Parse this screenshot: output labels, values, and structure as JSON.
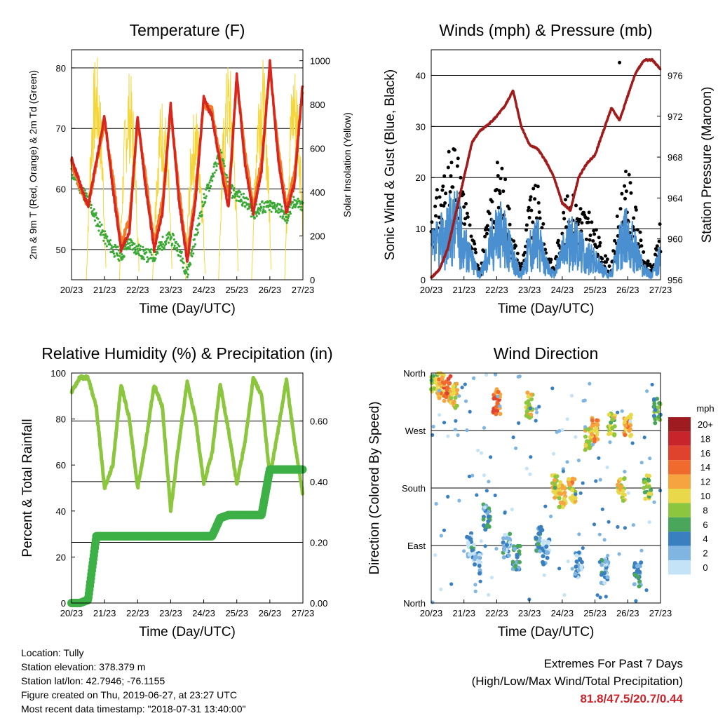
{
  "colors": {
    "red": "#d7261e",
    "orange": "#f07d28",
    "green": "#3aa935",
    "yellow": "#f5d63a",
    "black": "#000000",
    "blue": "#4a8fd0",
    "maroon": "#a01c1c",
    "rh": "#8cc63f",
    "precip": "#3db046"
  },
  "x_ticks": [
    "20/23",
    "21/23",
    "22/23",
    "23/23",
    "24/23",
    "25/23",
    "26/23",
    "27/23"
  ],
  "x_label": "Time (Day/UTC)",
  "panels": {
    "temperature": {
      "title": "Temperature (F)",
      "ylabel_left": "2m & 9m T (Red, Orange) & 2m Td (Green)",
      "ylabel_right": "Solar Insolation (Yellow)",
      "yticks_left": [
        "50",
        "60",
        "70",
        "80"
      ],
      "yticks_right": [
        "0",
        "200",
        "400",
        "600",
        "800",
        "1000"
      ]
    },
    "winds": {
      "title": "Winds (mph) & Pressure (mb)",
      "ylabel_left": "Sonic Wind & Gust (Blue, Black)",
      "ylabel_right": "Station Pressure (Maroon)",
      "yticks_left": [
        "0",
        "10",
        "20",
        "30",
        "40"
      ],
      "yticks_right": [
        "956",
        "960",
        "964",
        "968",
        "972",
        "976"
      ]
    },
    "humidity": {
      "title": "Relative Humidity (%) & Precipitation (in)",
      "ylabel_left": "Percent & Total Rainfall",
      "yticks_left": [
        "0",
        "20",
        "40",
        "60",
        "80",
        "100"
      ],
      "yticks_right": [
        "0.00",
        "0.20",
        "0.40",
        "0.60"
      ]
    },
    "direction": {
      "title": "Wind Direction",
      "ylabel_left": "Direction (Colored By Speed)",
      "yticks_left": [
        "North",
        "East",
        "South",
        "West",
        "North"
      ],
      "legend_title": "mph",
      "legend_labels": [
        "20+",
        "18",
        "16",
        "14",
        "12",
        "10",
        "8",
        "6",
        "4",
        "2",
        "0"
      ],
      "legend_colors": [
        "#9e1b20",
        "#c8242b",
        "#e0432d",
        "#f06a2d",
        "#f5a440",
        "#e9d84a",
        "#8cc63f",
        "#4aa65a",
        "#3a7fc0",
        "#7fb5e0",
        "#c5e3f6"
      ]
    }
  },
  "info": {
    "location": "Location: Tully",
    "elevation": "Station elevation: 378.379 m",
    "latlon": "Station lat/lon: 42.7946; -76.1155",
    "created": "Figure created on Thu, 2019-06-27, at 23:27 UTC",
    "recent": "Most recent data timestamp: \"2018-07-31 13:40:00\""
  },
  "extremes": {
    "title": "Extremes For Past 7 Days",
    "subtitle": "(High/Low/Max Wind/Total Precipitation)",
    "values": "81.8/47.5/20.7/0.44"
  },
  "chart_data": [
    {
      "type": "line",
      "title": "Temperature (F)",
      "xlabel": "Time (Day/UTC)",
      "ylabel": "2m & 9m T (Red, Orange) & 2m Td (Green)",
      "ylabel_right": "Solar Insolation (Yellow)",
      "x": [
        20.0,
        20.5,
        21.0,
        21.25,
        21.5,
        21.75,
        22.0,
        22.25,
        22.5,
        22.75,
        23.0,
        23.25,
        23.5,
        23.75,
        24.0,
        24.25,
        24.5,
        24.75,
        25.0,
        25.25,
        25.5,
        25.75,
        26.0,
        26.25,
        26.5,
        26.75,
        27.0
      ],
      "ylim": [
        45,
        83
      ],
      "ylim_right": [
        0,
        1050
      ],
      "series": [
        {
          "name": "2m T",
          "values": [
            65,
            57,
            72,
            60,
            50,
            53,
            72,
            60,
            50,
            56,
            74,
            58,
            48,
            58,
            75,
            72,
            64,
            57,
            79,
            64,
            56,
            63,
            81,
            65,
            56,
            61,
            78
          ]
        },
        {
          "name": "9m T",
          "values": [
            64,
            57,
            71,
            62,
            51,
            55,
            71,
            62,
            51,
            58,
            73,
            60,
            49,
            60,
            74,
            73,
            65,
            59,
            78,
            66,
            57,
            65,
            80,
            67,
            57,
            63,
            77
          ]
        },
        {
          "name": "2m Td",
          "values": [
            63,
            58,
            52,
            50,
            49,
            51,
            50,
            49,
            49,
            51,
            52,
            50,
            46,
            52,
            58,
            62,
            66,
            60,
            59,
            58,
            56,
            57,
            57,
            57,
            55,
            58,
            57
          ]
        },
        {
          "name": "Solar Insolation",
          "values": [
            0,
            0,
            1030,
            0,
            0,
            0,
            960,
            0,
            0,
            0,
            850,
            0,
            0,
            0,
            800,
            0,
            0,
            0,
            1010,
            0,
            0,
            0,
            1040,
            0,
            0,
            0,
            1000
          ]
        }
      ]
    },
    {
      "type": "line",
      "title": "Winds (mph) & Pressure (mb)",
      "xlabel": "Time (Day/UTC)",
      "ylabel": "Sonic Wind & Gust (Blue, Black)",
      "ylabel_right": "Station Pressure (Maroon)",
      "x": [
        20.0,
        20.25,
        20.5,
        20.75,
        21.0,
        21.25,
        21.5,
        21.75,
        22.0,
        22.25,
        22.5,
        22.75,
        23.0,
        23.25,
        23.5,
        23.75,
        24.0,
        24.25,
        24.5,
        24.75,
        25.0,
        25.25,
        25.5,
        25.75,
        26.0,
        26.25,
        26.5,
        26.75,
        27.0
      ],
      "ylim": [
        0,
        45
      ],
      "ylim_right": [
        956,
        978.5
      ],
      "series": [
        {
          "name": "Sonic Wind",
          "values": [
            6,
            8,
            10,
            12,
            8,
            4,
            1,
            6,
            11,
            9,
            4,
            1,
            7,
            8,
            3,
            1,
            6,
            8,
            7,
            5,
            4,
            2,
            1,
            7,
            10,
            6,
            2,
            1,
            5
          ]
        },
        {
          "name": "Gust",
          "values": [
            12,
            16,
            21,
            22,
            15,
            8,
            2,
            12,
            20,
            18,
            8,
            2,
            14,
            16,
            6,
            2,
            12,
            15,
            14,
            12,
            9,
            5,
            2,
            14,
            19,
            12,
            4,
            2,
            10
          ]
        },
        {
          "name": "Station Pressure",
          "values": [
            956.2,
            957,
            959,
            962.5,
            966,
            969.5,
            970.6,
            971.2,
            972,
            973,
            974.5,
            971,
            969.2,
            968.8,
            967.6,
            966,
            963.5,
            962.8,
            966,
            967.4,
            968.2,
            970.5,
            972.8,
            971.6,
            974,
            976.3,
            977.5,
            977.5,
            976.6
          ]
        }
      ]
    },
    {
      "type": "line",
      "title": "Relative Humidity (%) & Precipitation (in)",
      "xlabel": "Time (Day/UTC)",
      "ylabel": "Percent & Total Rainfall",
      "x": [
        20.0,
        20.25,
        20.5,
        20.75,
        21.0,
        21.25,
        21.5,
        21.75,
        22.0,
        22.25,
        22.5,
        22.75,
        23.0,
        23.25,
        23.5,
        23.75,
        24.0,
        24.25,
        24.5,
        24.75,
        25.0,
        25.25,
        25.5,
        25.75,
        26.0,
        26.25,
        26.5,
        26.75,
        27.0
      ],
      "ylim": [
        0,
        100
      ],
      "ylim_right": [
        0,
        0.758
      ],
      "series": [
        {
          "name": "Relative Humidity",
          "values": [
            92,
            98,
            98,
            85,
            50,
            60,
            95,
            80,
            50,
            70,
            95,
            85,
            40,
            70,
            96,
            80,
            52,
            65,
            95,
            75,
            52,
            70,
            98,
            90,
            55,
            75,
            97,
            70,
            47
          ]
        },
        {
          "name": "Precipitation",
          "values": [
            0.0,
            0.0,
            0.01,
            0.22,
            0.22,
            0.22,
            0.22,
            0.22,
            0.22,
            0.22,
            0.22,
            0.22,
            0.22,
            0.22,
            0.22,
            0.22,
            0.22,
            0.22,
            0.28,
            0.29,
            0.29,
            0.29,
            0.29,
            0.29,
            0.44,
            0.44,
            0.44,
            0.44,
            0.44
          ]
        }
      ]
    },
    {
      "type": "scatter",
      "title": "Wind Direction",
      "xlabel": "Time (Day/UTC)",
      "ylabel": "Direction (Colored By Speed)",
      "ylim": [
        0,
        360
      ],
      "series": [
        {
          "name": "Direction",
          "x": [
            20.1,
            20.3,
            20.5,
            20.7,
            21.2,
            21.4,
            21.7,
            22.0,
            22.3,
            22.6,
            23.0,
            23.3,
            23.5,
            23.8,
            24.0,
            24.3,
            24.5,
            24.8,
            25.0,
            25.3,
            25.5,
            25.8,
            26.0,
            26.3,
            26.6,
            26.9
          ],
          "y": [
            345,
            340,
            335,
            325,
            90,
            60,
            135,
            315,
            90,
            70,
            310,
            100,
            80,
            180,
            170,
            175,
            60,
            255,
            270,
            50,
            280,
            180,
            275,
            45,
            180,
            300
          ],
          "speed": [
            8,
            12,
            14,
            10,
            3,
            2,
            4,
            14,
            3,
            4,
            10,
            4,
            2,
            9,
            10,
            11,
            2,
            10,
            12,
            3,
            9,
            10,
            12,
            4,
            8,
            6
          ]
        }
      ]
    }
  ]
}
